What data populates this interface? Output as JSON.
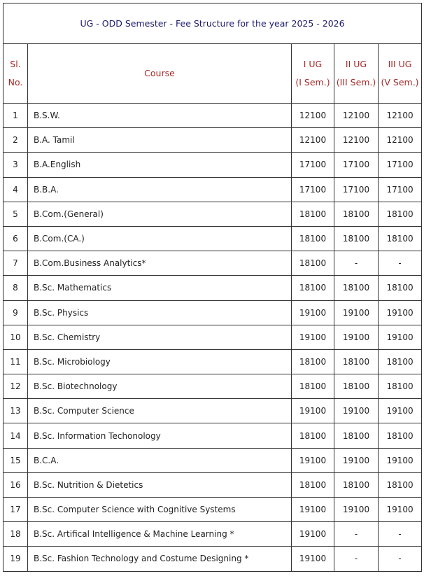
{
  "title": "UG - ODD Semester - Fee Structure for the year 2025 - 2026",
  "table": {
    "header": [
      [
        "Sl.",
        "No."
      ],
      [
        "Course"
      ],
      [
        "I UG",
        "(I Sem.)"
      ],
      [
        "II UG",
        "(III Sem.)"
      ],
      [
        "III UG",
        "(V Sem.)"
      ]
    ],
    "rows": [
      [
        1,
        "B.S.W.",
        12100,
        12100,
        12100
      ],
      [
        2,
        "B.A. Tamil",
        12100,
        12100,
        12100
      ],
      [
        3,
        "B.A.English",
        17100,
        17100,
        17100
      ],
      [
        4,
        "B.B.A.",
        17100,
        17100,
        17100
      ],
      [
        5,
        "B.Com.(General)",
        18100,
        18100,
        18100
      ],
      [
        6,
        "B.Com.(CA.)",
        18100,
        18100,
        18100
      ],
      [
        7,
        "B.Com.Business Analytics*",
        18100,
        "-",
        "-"
      ],
      [
        8,
        "B.Sc. Mathematics",
        18100,
        18100,
        18100
      ],
      [
        9,
        "B.Sc. Physics",
        19100,
        19100,
        19100
      ],
      [
        10,
        "B.Sc. Chemistry",
        19100,
        19100,
        19100
      ],
      [
        11,
        "B.Sc. Microbiology",
        18100,
        18100,
        18100
      ],
      [
        12,
        "B.Sc. Biotechnology",
        18100,
        18100,
        18100
      ],
      [
        13,
        "B.Sc. Computer Science",
        19100,
        19100,
        19100
      ],
      [
        14,
        "B.Sc. Information Techonology",
        18100,
        18100,
        18100
      ],
      [
        15,
        "B.C.A.",
        19100,
        19100,
        19100
      ],
      [
        16,
        "B.Sc. Nutrition & Dietetics",
        18100,
        18100,
        18100
      ],
      [
        17,
        "B.Sc. Computer Science with Cognitive Systems",
        19100,
        19100,
        19100
      ],
      [
        18,
        "B.Sc. Artifical Intelligence & Machine Learning *",
        19100,
        "-",
        "-"
      ],
      [
        19,
        "B.Sc. Fashion Technology and Costume Designing *",
        19100,
        "-",
        "-"
      ]
    ]
  }
}
